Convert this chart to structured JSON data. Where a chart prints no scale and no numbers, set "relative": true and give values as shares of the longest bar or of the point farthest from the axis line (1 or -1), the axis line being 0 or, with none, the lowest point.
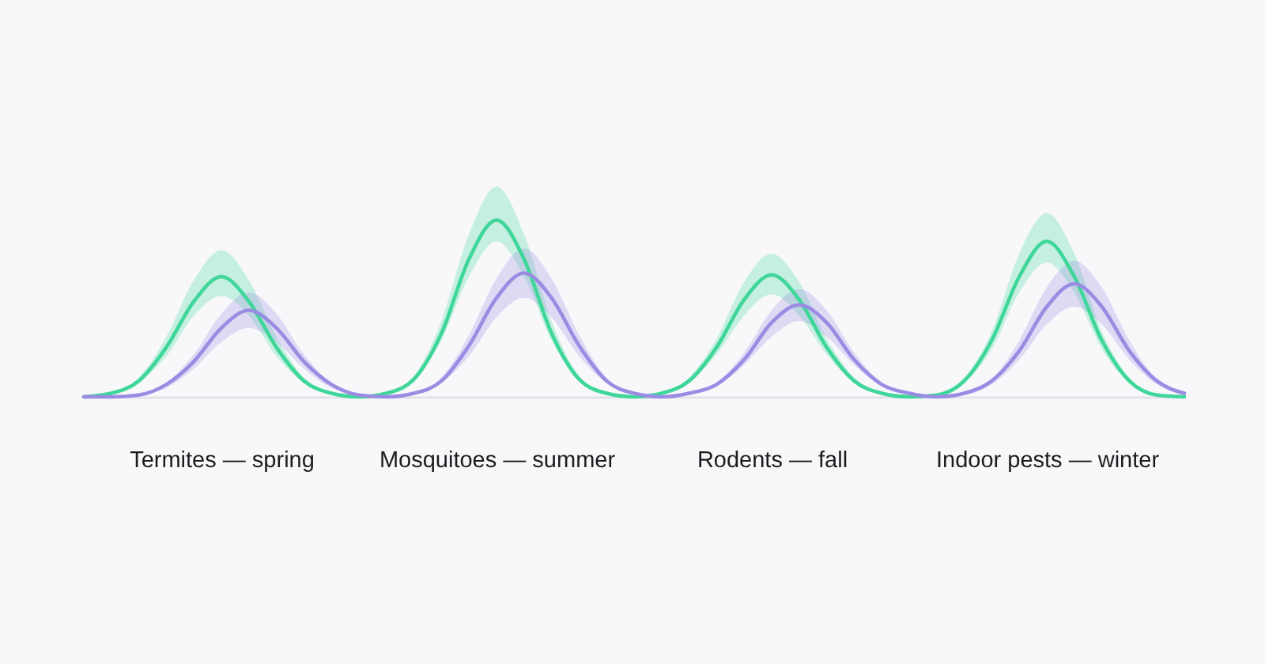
{
  "chart_data": {
    "type": "line",
    "relative": true,
    "categories": [
      null,
      null,
      null,
      null,
      null,
      "Termites — spring",
      null,
      null,
      null,
      null,
      null,
      null,
      null,
      null,
      null,
      "Mosquitoes — summer",
      null,
      null,
      null,
      null,
      null,
      null,
      null,
      null,
      null,
      "Rodents — fall",
      null,
      null,
      null,
      null,
      null,
      null,
      null,
      null,
      null,
      "Indoor pests — winter",
      null,
      null,
      null,
      null,
      null
    ],
    "tick_labels": "x",
    "series": [
      {
        "color": "#3fd69a",
        "values": [
          0,
          0.02,
          0.09,
          0.28,
          0.54,
          0.68,
          0.54,
          0.28,
          0.09,
          0.02,
          0,
          0.02,
          0.1,
          0.36,
          0.78,
          1.0,
          0.78,
          0.36,
          0.1,
          0.02,
          0,
          0.02,
          0.09,
          0.28,
          0.55,
          0.69,
          0.55,
          0.28,
          0.09,
          0.02,
          0,
          0.01,
          0.09,
          0.32,
          0.68,
          0.88,
          0.68,
          0.32,
          0.09,
          0.01,
          0
        ],
        "lower": [
          0,
          0.02,
          0.08,
          0.23,
          0.46,
          0.57,
          0.46,
          0.23,
          0.08,
          0.02,
          0,
          0.01,
          0.09,
          0.32,
          0.68,
          0.88,
          0.68,
          0.32,
          0.09,
          0.01,
          0,
          0.02,
          0.08,
          0.24,
          0.46,
          0.58,
          0.46,
          0.24,
          0.08,
          0.02,
          0,
          0.01,
          0.08,
          0.27,
          0.59,
          0.76,
          0.59,
          0.27,
          0.08,
          0.01,
          0
        ],
        "upper": [
          0,
          0.02,
          0.11,
          0.34,
          0.66,
          0.83,
          0.66,
          0.34,
          0.11,
          0.02,
          0,
          0.02,
          0.12,
          0.43,
          0.92,
          1.19,
          0.92,
          0.43,
          0.12,
          0.02,
          0,
          0.02,
          0.11,
          0.33,
          0.65,
          0.81,
          0.65,
          0.33,
          0.11,
          0.02,
          0,
          0.02,
          0.11,
          0.37,
          0.81,
          1.04,
          0.81,
          0.37,
          0.11,
          0.02,
          0
        ]
      },
      {
        "color": "#9a8ce2",
        "values": [
          0,
          0,
          0.01,
          0.07,
          0.2,
          0.39,
          0.49,
          0.39,
          0.2,
          0.07,
          0.01,
          0,
          0.02,
          0.09,
          0.29,
          0.56,
          0.7,
          0.56,
          0.29,
          0.09,
          0.02,
          0,
          0.02,
          0.07,
          0.21,
          0.42,
          0.52,
          0.42,
          0.21,
          0.07,
          0.02,
          0,
          0.02,
          0.09,
          0.26,
          0.51,
          0.64,
          0.51,
          0.26,
          0.09,
          0.02
        ],
        "lower": [
          0,
          0,
          0.01,
          0.05,
          0.16,
          0.31,
          0.39,
          0.31,
          0.16,
          0.05,
          0.01,
          0,
          0.02,
          0.08,
          0.23,
          0.45,
          0.56,
          0.45,
          0.23,
          0.08,
          0.02,
          0,
          0.01,
          0.06,
          0.18,
          0.34,
          0.43,
          0.34,
          0.18,
          0.06,
          0.01,
          0,
          0.01,
          0.07,
          0.21,
          0.41,
          0.51,
          0.41,
          0.21,
          0.07,
          0.01
        ],
        "upper": [
          0,
          0,
          0.02,
          0.08,
          0.24,
          0.47,
          0.59,
          0.47,
          0.24,
          0.08,
          0.02,
          0,
          0.02,
          0.11,
          0.35,
          0.67,
          0.84,
          0.67,
          0.35,
          0.11,
          0.02,
          0,
          0.02,
          0.08,
          0.25,
          0.49,
          0.61,
          0.49,
          0.25,
          0.08,
          0.02,
          0,
          0.02,
          0.1,
          0.32,
          0.62,
          0.77,
          0.62,
          0.32,
          0.1,
          0.02
        ]
      }
    ]
  }
}
